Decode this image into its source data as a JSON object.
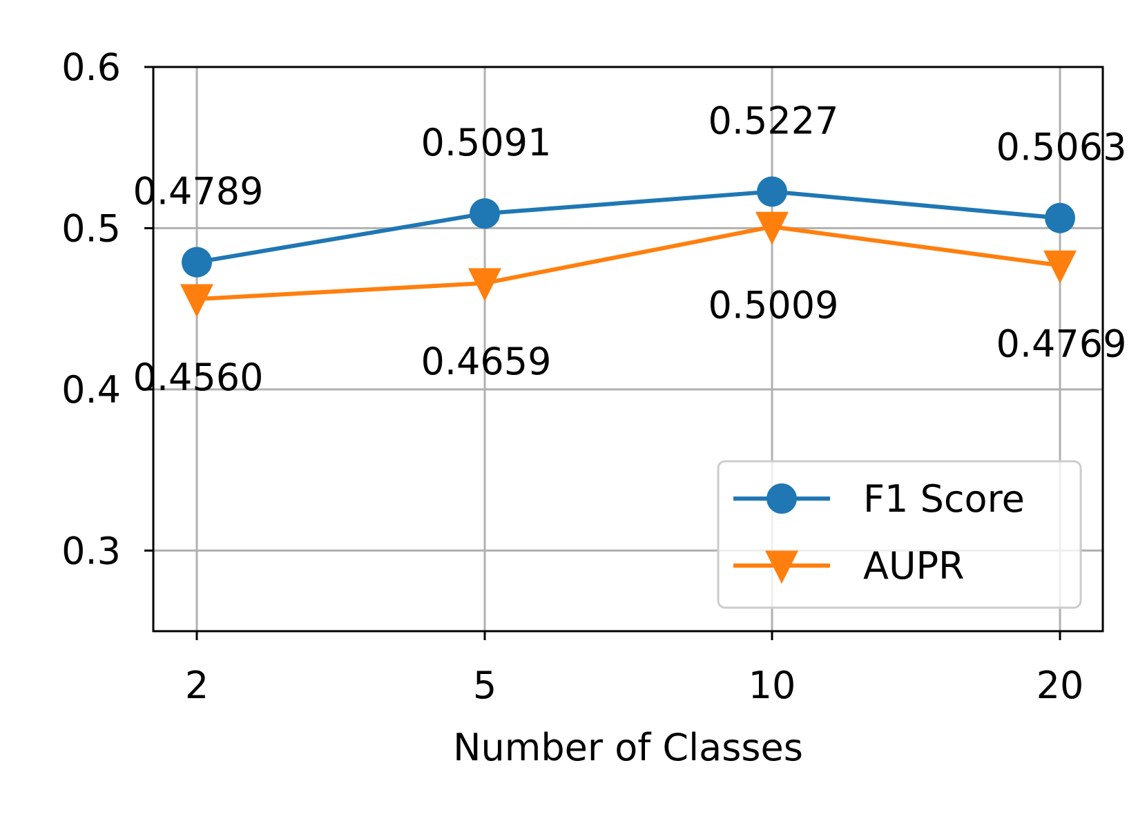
{
  "chart_data": {
    "type": "line",
    "categories": [
      "2",
      "5",
      "10",
      "20"
    ],
    "series": [
      {
        "name": "F1 Score",
        "values": [
          0.4789,
          0.5091,
          0.5227,
          0.5063
        ],
        "labels": [
          "0.4789",
          "0.5091",
          "0.5227",
          "0.5063"
        ],
        "color": "#1f77b4",
        "marker": "circle"
      },
      {
        "name": "AUPR",
        "values": [
          0.456,
          0.4659,
          0.5009,
          0.4769
        ],
        "labels": [
          "0.4560",
          "0.4659",
          "0.5009",
          "0.4769"
        ],
        "color": "#ff7f0e",
        "marker": "triangle-down"
      }
    ],
    "xlabel": "Number of Classes",
    "ylabel": "",
    "ylim": [
      0.25,
      0.6
    ],
    "yticks": [
      0.3,
      0.4,
      0.5,
      0.6
    ],
    "ytick_labels": [
      "0.3",
      "0.4",
      "0.5",
      "0.6"
    ],
    "grid": true,
    "legend_position": "bottom-right"
  }
}
